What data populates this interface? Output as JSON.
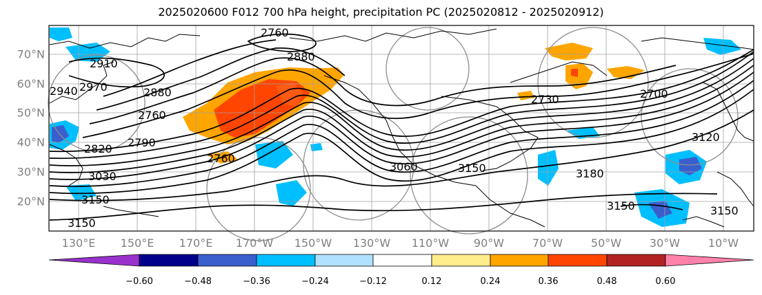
{
  "title": "2025020600 F012 700 hPa height, precipitation PC (2025020812 - 2025020912)",
  "lat_labels": [
    "70°N",
    "60°N",
    "50°N",
    "40°N",
    "30°N",
    "20°N"
  ],
  "lon_labels": [
    "130°E",
    "150°E",
    "170°E",
    "170°W",
    "150°W",
    "130°W",
    "110°W",
    "90°W",
    "70°W",
    "50°W",
    "30°W",
    "10°W"
  ],
  "contour_labels": [
    "2760",
    "2880",
    "2910",
    "2940",
    "2970",
    "2880",
    "2760",
    "2820",
    "2790",
    "3030",
    "3150",
    "3150",
    "2760",
    "3060",
    "3150",
    "3180",
    "3150",
    "3120",
    "2700",
    "2730",
    "3150"
  ],
  "colorbar": {
    "ticks": [
      "−0.60",
      "−0.48",
      "−0.36",
      "−0.24",
      "−0.12",
      "0.12",
      "0.24",
      "0.36",
      "0.48",
      "0.60"
    ],
    "colors": [
      "#9932cc",
      "#00008b",
      "#3a5fcd",
      "#00bfff",
      "#b0e2ff",
      "#ffffff",
      "#ffec8b",
      "#ffa500",
      "#ff4500",
      "#b22222",
      "#ff82ab"
    ]
  },
  "colors": {
    "negative_light": "#00bfff",
    "negative_mid": "#3a5fcd",
    "positive_light": "#ffa500",
    "positive_mid": "#ff4500",
    "grid": "#808080"
  }
}
